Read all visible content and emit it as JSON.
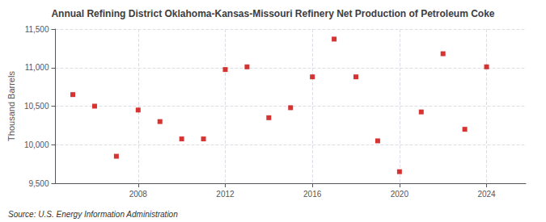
{
  "chart_data": {
    "type": "scatter",
    "title": "Annual Refining District Oklahoma-Kansas-Missouri Refinery Net Production of Petroleum Coke",
    "ylabel": "Thousand Barrels",
    "source": "Source: U.S. Energy Information Administration",
    "x": [
      2005,
      2006,
      2007,
      2008,
      2009,
      2010,
      2011,
      2012,
      2013,
      2014,
      2015,
      2016,
      2017,
      2018,
      2019,
      2020,
      2021,
      2022,
      2023,
      2024
    ],
    "values": [
      10650,
      10500,
      9850,
      10450,
      10300,
      10075,
      10075,
      10975,
      11010,
      10350,
      10480,
      10880,
      11370,
      10880,
      10050,
      9650,
      10425,
      11180,
      10200,
      11010
    ],
    "color": "#cc0000",
    "marker": "square",
    "xlim": [
      2004.2,
      2025.8
    ],
    "xticks": [
      2008,
      2012,
      2016,
      2020,
      2024
    ],
    "ylim": [
      9500,
      11500
    ],
    "yticks": [
      {
        "value": 9500,
        "label": "9,500"
      },
      {
        "value": 10000,
        "label": "10,000"
      },
      {
        "value": 10500,
        "label": "10,500"
      },
      {
        "value": 11000,
        "label": "11,000"
      },
      {
        "value": 11500,
        "label": "11,500"
      }
    ],
    "grid": true
  }
}
